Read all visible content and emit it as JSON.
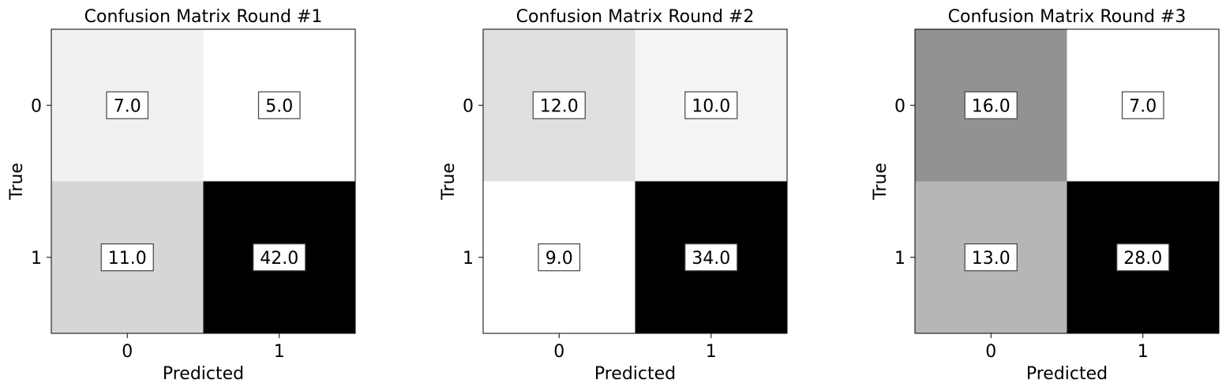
{
  "chart_data": [
    {
      "type": "heatmap",
      "title": "Confusion Matrix Round #1",
      "xlabel": "Predicted",
      "ylabel": "True",
      "x_ticks": [
        "0",
        "1"
      ],
      "y_ticks": [
        "0",
        "1"
      ],
      "colormap": "grayscale (white = low, black = high)",
      "values": [
        [
          7.0,
          5.0
        ],
        [
          11.0,
          42.0
        ]
      ],
      "cell_labels": [
        [
          "7.0",
          "5.0"
        ],
        [
          "11.0",
          "42.0"
        ]
      ]
    },
    {
      "type": "heatmap",
      "title": "Confusion Matrix Round #2",
      "xlabel": "Predicted",
      "ylabel": "True",
      "x_ticks": [
        "0",
        "1"
      ],
      "y_ticks": [
        "0",
        "1"
      ],
      "colormap": "grayscale (white = low, black = high)",
      "values": [
        [
          12.0,
          10.0
        ],
        [
          9.0,
          34.0
        ]
      ],
      "cell_labels": [
        [
          "12.0",
          "10.0"
        ],
        [
          "9.0",
          "34.0"
        ]
      ]
    },
    {
      "type": "heatmap",
      "title": "Confusion Matrix Round #3",
      "xlabel": "Predicted",
      "ylabel": "True",
      "x_ticks": [
        "0",
        "1"
      ],
      "y_ticks": [
        "0",
        "1"
      ],
      "colormap": "grayscale (white = low, black = high)",
      "values": [
        [
          16.0,
          7.0
        ],
        [
          13.0,
          28.0
        ]
      ],
      "cell_labels": [
        [
          "16.0",
          "7.0"
        ],
        [
          "13.0",
          "28.0"
        ]
      ]
    }
  ]
}
